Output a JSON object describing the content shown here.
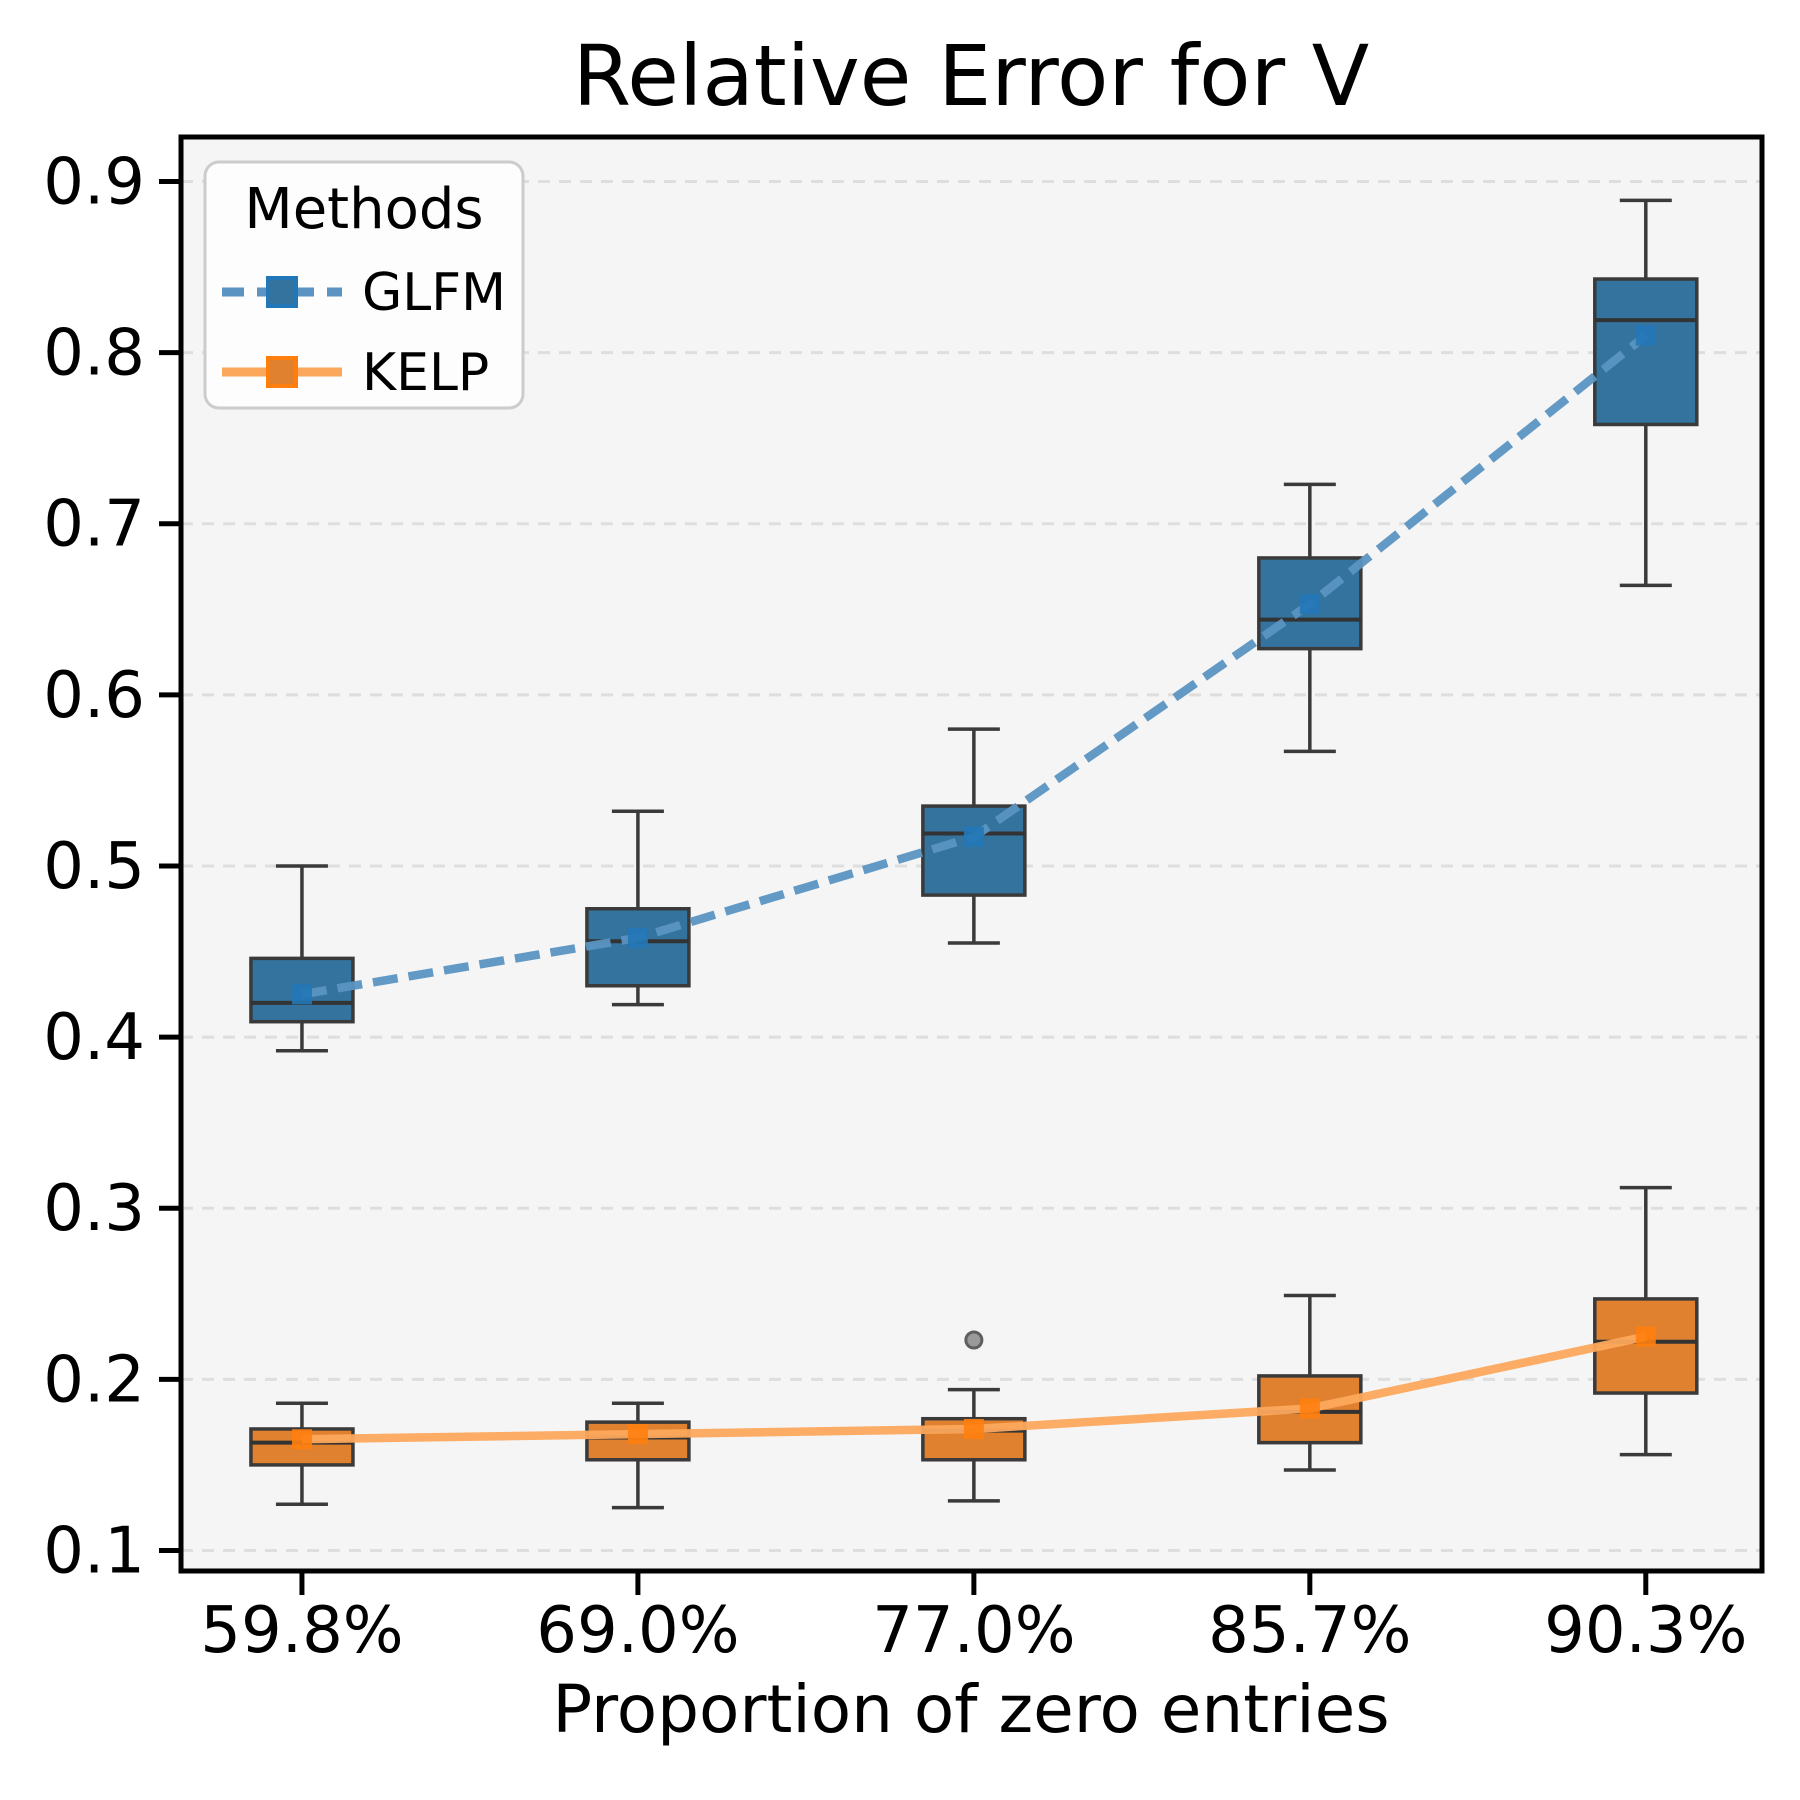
{
  "chart_data": {
    "type": "boxplot",
    "title": "Relative Error for V",
    "xlabel": "Proportion of zero entries",
    "ylabel": "",
    "categories": [
      "59.8%",
      "69.0%",
      "77.0%",
      "85.7%",
      "90.3%"
    ],
    "y_ticks": [
      "0.9",
      "0.8",
      "0.7",
      "0.6",
      "0.5",
      "0.4",
      "0.3",
      "0.2",
      "0.1"
    ],
    "y_tick_values": [
      0.9,
      0.8,
      0.7,
      0.6,
      0.5,
      0.4,
      0.3,
      0.2,
      0.1
    ],
    "ylim": [
      0.088,
      0.926
    ],
    "grid": "horizontal-dashed",
    "legend": {
      "title": "Methods",
      "position": "upper-left",
      "entries": [
        {
          "label": "GLFM",
          "line_style": "dashed"
        },
        {
          "label": "KELP",
          "line_style": "solid"
        }
      ]
    },
    "colors": {
      "plot_bg": "#f5f5f5",
      "grid": "#dedede",
      "spine": "#000000",
      "box_edge": "#3a3a3a",
      "median": "#333333",
      "outlier_fill": "#9a9a9a",
      "outlier_edge": "#5f5f5f",
      "glfm_box": "#33739E",
      "glfm_line": "#5B93C2",
      "glfm_mean": "#2277B6",
      "kelp_box": "#E0812F",
      "kelp_line": "#FCA85C",
      "kelp_mean": "#FF7F0E"
    },
    "series": [
      {
        "name": "GLFM",
        "line_style": "dashed",
        "box_color": "#33739E",
        "line_color": "#5B93C2",
        "mean_color": "#2277B6",
        "boxes": [
          {
            "category": "59.8%",
            "whisker_low": 0.392,
            "q1": 0.409,
            "median": 0.42,
            "q3": 0.446,
            "whisker_high": 0.5,
            "mean": 0.425,
            "outliers": []
          },
          {
            "category": "69.0%",
            "whisker_low": 0.419,
            "q1": 0.43,
            "median": 0.456,
            "q3": 0.475,
            "whisker_high": 0.532,
            "mean": 0.458,
            "outliers": []
          },
          {
            "category": "77.0%",
            "whisker_low": 0.455,
            "q1": 0.483,
            "median": 0.519,
            "q3": 0.535,
            "whisker_high": 0.58,
            "mean": 0.517,
            "outliers": []
          },
          {
            "category": "85.7%",
            "whisker_low": 0.567,
            "q1": 0.627,
            "median": 0.644,
            "q3": 0.68,
            "whisker_high": 0.723,
            "mean": 0.653,
            "outliers": []
          },
          {
            "category": "90.3%",
            "whisker_low": 0.664,
            "q1": 0.758,
            "median": 0.819,
            "q3": 0.843,
            "whisker_high": 0.889,
            "mean": 0.81,
            "outliers": []
          }
        ]
      },
      {
        "name": "KELP",
        "line_style": "solid",
        "box_color": "#E0812F",
        "line_color": "#FCA85C",
        "mean_color": "#FF7F0E",
        "boxes": [
          {
            "category": "59.8%",
            "whisker_low": 0.127,
            "q1": 0.15,
            "median": 0.163,
            "q3": 0.171,
            "whisker_high": 0.186,
            "mean": 0.165,
            "outliers": []
          },
          {
            "category": "69.0%",
            "whisker_low": 0.125,
            "q1": 0.153,
            "median": 0.166,
            "q3": 0.175,
            "whisker_high": 0.186,
            "mean": 0.168,
            "outliers": []
          },
          {
            "category": "77.0%",
            "whisker_low": 0.129,
            "q1": 0.153,
            "median": 0.17,
            "q3": 0.177,
            "whisker_high": 0.194,
            "mean": 0.171,
            "outliers": [
              0.223
            ]
          },
          {
            "category": "85.7%",
            "whisker_low": 0.147,
            "q1": 0.163,
            "median": 0.181,
            "q3": 0.202,
            "whisker_high": 0.249,
            "mean": 0.183,
            "outliers": []
          },
          {
            "category": "90.3%",
            "whisker_low": 0.156,
            "q1": 0.192,
            "median": 0.222,
            "q3": 0.247,
            "whisker_high": 0.312,
            "mean": 0.225,
            "outliers": []
          }
        ]
      }
    ]
  }
}
